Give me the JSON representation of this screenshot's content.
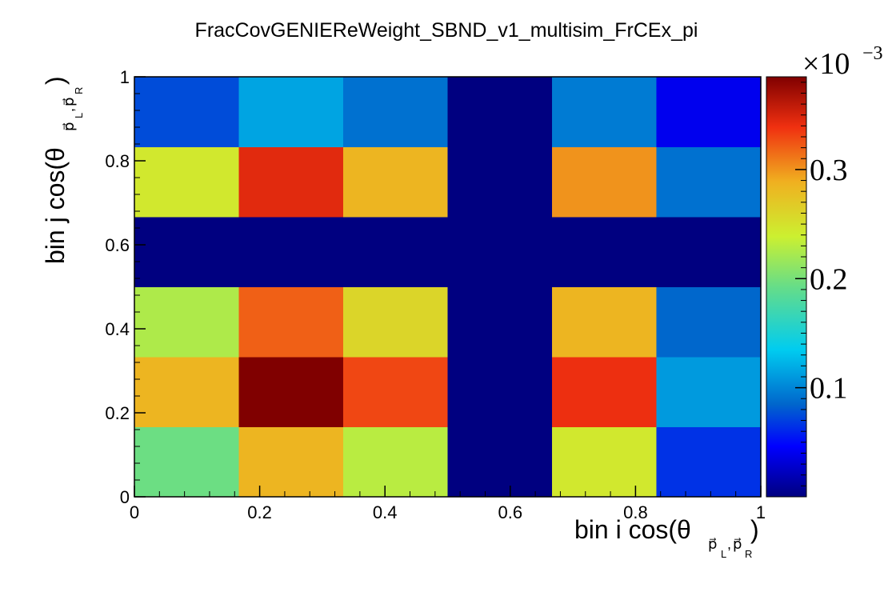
{
  "chart_data": {
    "type": "heatmap",
    "title": "FracCovGENIEReWeight_SBND_v1_multisim_FrCEx_pi",
    "xlabel": {
      "main": "bin i cos(θ",
      "sub": "p⃗_L,p⃗_R",
      "sub1": "p⃗",
      "sub1s": "L",
      "comma": ",",
      "sub2": "p⃗",
      "sub2s": "R",
      "close": ")"
    },
    "ylabel": {
      "main": "bin j cos(θ",
      "sub1": "p⃗",
      "sub1s": "L",
      "comma": ",",
      "sub2": "p⃗",
      "sub2s": "R",
      "close": ")"
    },
    "xlim": [
      0,
      1
    ],
    "ylim": [
      0,
      1
    ],
    "x_ticks": [
      "0",
      "0.2",
      "0.4",
      "0.6",
      "0.8",
      "1"
    ],
    "y_ticks": [
      "0",
      "0.2",
      "0.4",
      "0.6",
      "0.8",
      "1"
    ],
    "x_bin_edges": [
      0,
      0.1667,
      0.3333,
      0.5,
      0.6667,
      0.8333,
      1.0
    ],
    "y_bin_edges": [
      0,
      0.1667,
      0.3333,
      0.5,
      0.6667,
      0.8333,
      1.0
    ],
    "z_multiplier": "×10",
    "z_exponent": "−3",
    "z_range": [
      0.0,
      0.385
    ],
    "z_ticks": [
      "0.1",
      "0.2",
      "0.3"
    ],
    "z_tick_values": [
      0.1,
      0.2,
      0.3
    ],
    "colormap": "jet",
    "values": [
      [
        0.195,
        0.285,
        0.23,
        0.0,
        0.245,
        0.065
      ],
      [
        0.285,
        0.385,
        0.33,
        0.0,
        0.34,
        0.11
      ],
      [
        0.225,
        0.32,
        0.26,
        0.0,
        0.285,
        0.085
      ],
      [
        0.0,
        0.0,
        0.0,
        0.0,
        0.0,
        0.0
      ],
      [
        0.245,
        0.345,
        0.285,
        0.0,
        0.3,
        0.09
      ],
      [
        0.075,
        0.115,
        0.09,
        0.0,
        0.095,
        0.04
      ]
    ]
  }
}
